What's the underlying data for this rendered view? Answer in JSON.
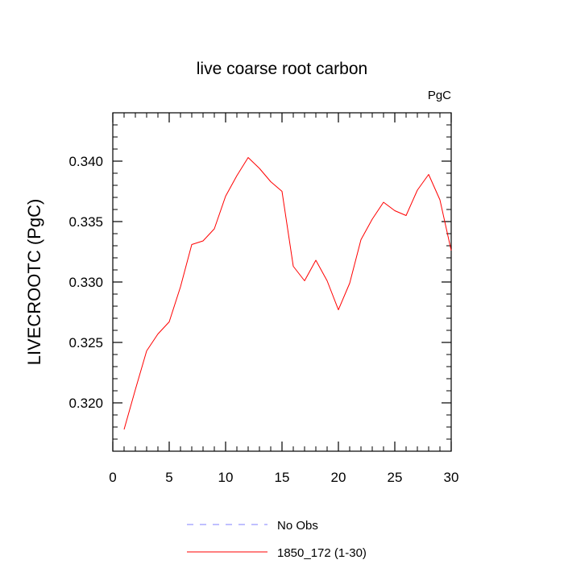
{
  "chart_data": {
    "type": "line",
    "title": "live coarse root carbon",
    "units_label": "PgC",
    "ylabel": "LIVECROOTC  (PgC)",
    "xlabel": "",
    "xlim": [
      0,
      30
    ],
    "ylim": [
      0.316,
      0.344
    ],
    "x_major_ticks": [
      0,
      5,
      10,
      15,
      20,
      25,
      30
    ],
    "x_tick_labels": [
      "0",
      "5",
      "10",
      "15",
      "20",
      "25",
      "30"
    ],
    "y_major_ticks": [
      0.32,
      0.325,
      0.33,
      0.335,
      0.34
    ],
    "y_tick_labels": [
      "0.320",
      "0.325",
      "0.330",
      "0.335",
      "0.340"
    ],
    "grid": false,
    "legend_position": "bottom",
    "series": [
      {
        "name": "1850_172 (1-30)",
        "color": "#ff0000",
        "dash": "solid",
        "x": [
          1,
          2,
          3,
          4,
          5,
          6,
          7,
          8,
          9,
          10,
          11,
          12,
          13,
          14,
          15,
          16,
          17,
          18,
          19,
          20,
          21,
          22,
          23,
          24,
          25,
          26,
          27,
          28,
          29,
          30
        ],
        "y": [
          0.3178,
          0.3211,
          0.3243,
          0.3257,
          0.3267,
          0.3296,
          0.3331,
          0.3334,
          0.3344,
          0.3371,
          0.3388,
          0.3403,
          0.3394,
          0.3383,
          0.3375,
          0.3313,
          0.3301,
          0.3318,
          0.3301,
          0.3277,
          0.3299,
          0.3335,
          0.3352,
          0.3366,
          0.3359,
          0.3355,
          0.3376,
          0.3389,
          0.3368,
          0.3326
        ]
      }
    ],
    "legend": [
      {
        "label": "No Obs",
        "color": "#8080ff",
        "dash": "dashed"
      },
      {
        "label": "1850_172 (1-30)",
        "color": "#ff0000",
        "dash": "solid"
      }
    ]
  }
}
